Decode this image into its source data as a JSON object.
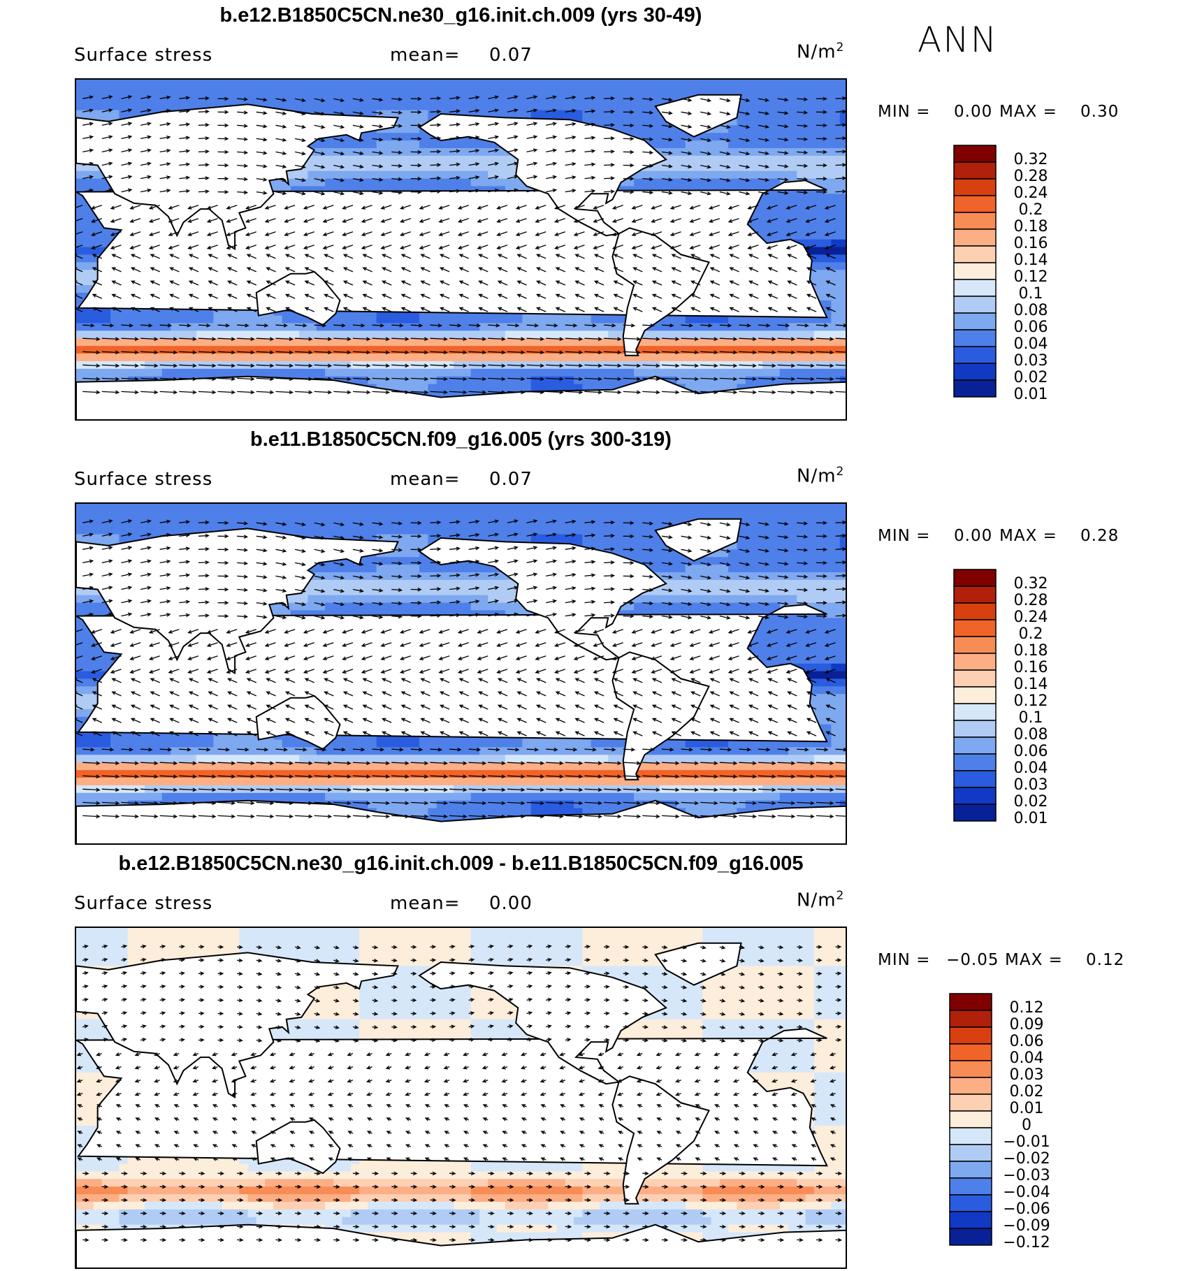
{
  "season": "ANN",
  "panels": [
    {
      "title": "b.e12.B1850C5CN.ne30_g16.init.ch.009 (yrs 30-49)",
      "variable": "Surface stress",
      "mean_label": "mean=",
      "mean_value": "0.07",
      "units_base": "N/m",
      "units_exp": "2",
      "min_label": "MIN =",
      "min_value": "0.00",
      "max_label": "MAX =",
      "max_value": "0.30",
      "colorbar_levels": [
        "0.32",
        "0.28",
        "0.24",
        "0.2",
        "0.18",
        "0.16",
        "0.14",
        "0.12",
        "0.1",
        "0.08",
        "0.06",
        "0.04",
        "0.03",
        "0.02",
        "0.01"
      ],
      "colorbar_colors": [
        "#800000",
        "#b0200a",
        "#d8400f",
        "#f06429",
        "#f88c55",
        "#fcae85",
        "#fdd0b3",
        "#fdeddb",
        "#d6e7fa",
        "#b0ccf5",
        "#7ea8ef",
        "#4f80e9",
        "#2a5ce0",
        "#103ac4",
        "#082196"
      ],
      "field": "abs"
    },
    {
      "title": "b.e11.B1850C5CN.f09_g16.005 (yrs 300-319)",
      "variable": "Surface stress",
      "mean_label": "mean=",
      "mean_value": "0.07",
      "units_base": "N/m",
      "units_exp": "2",
      "min_label": "MIN =",
      "min_value": "0.00",
      "max_label": "MAX =",
      "max_value": "0.28",
      "colorbar_levels": [
        "0.32",
        "0.28",
        "0.24",
        "0.2",
        "0.18",
        "0.16",
        "0.14",
        "0.12",
        "0.1",
        "0.08",
        "0.06",
        "0.04",
        "0.03",
        "0.02",
        "0.01"
      ],
      "colorbar_colors": [
        "#800000",
        "#b0200a",
        "#d8400f",
        "#f06429",
        "#f88c55",
        "#fcae85",
        "#fdd0b3",
        "#fdeddb",
        "#d6e7fa",
        "#b0ccf5",
        "#7ea8ef",
        "#4f80e9",
        "#2a5ce0",
        "#103ac4",
        "#082196"
      ],
      "field": "abs"
    },
    {
      "title": "b.e12.B1850C5CN.ne30_g16.init.ch.009 - b.e11.B1850C5CN.f09_g16.005",
      "variable": "Surface stress",
      "mean_label": "mean=",
      "mean_value": "0.00",
      "units_base": "N/m",
      "units_exp": "2",
      "min_label": "MIN =",
      "min_value": "−0.05",
      "max_label": "MAX =",
      "max_value": "0.12",
      "colorbar_levels": [
        "0.12",
        "0.09",
        "0.06",
        "0.04",
        "0.03",
        "0.02",
        "0.01",
        "0",
        "−0.01",
        "−0.02",
        "−0.03",
        "−0.04",
        "−0.06",
        "−0.09",
        "−0.12"
      ],
      "colorbar_colors": [
        "#800000",
        "#b0200a",
        "#d8400f",
        "#f06429",
        "#f88c55",
        "#fcae85",
        "#fdd0b3",
        "#fdeddb",
        "#d6e7fa",
        "#b0ccf5",
        "#7ea8ef",
        "#4f80e9",
        "#2a5ce0",
        "#103ac4",
        "#082196"
      ],
      "field": "diff"
    }
  ]
}
